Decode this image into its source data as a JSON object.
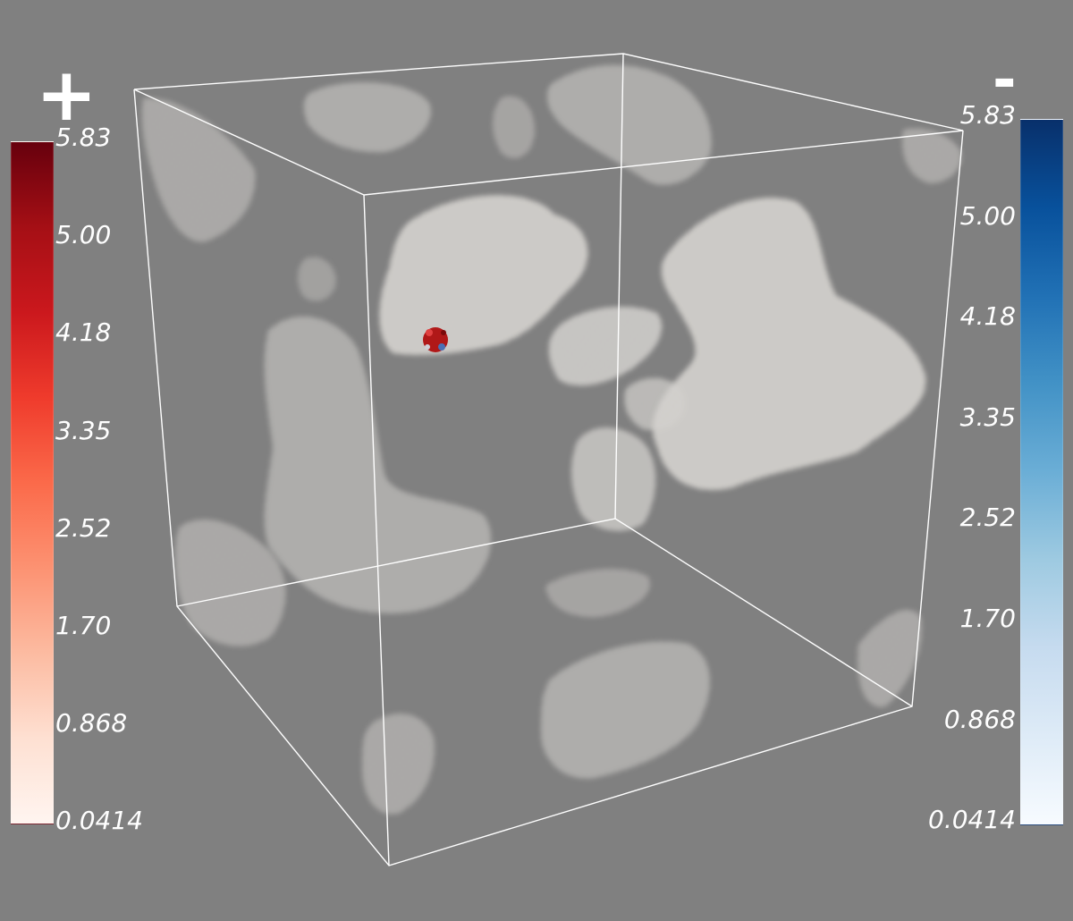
{
  "legend_positive": {
    "sign": "+",
    "color": "#c71a1d",
    "colormap": "Reds",
    "ticks": [
      "5.83",
      "5.00",
      "4.18",
      "3.35",
      "2.52",
      "1.70",
      "0.868",
      "0.0414"
    ]
  },
  "legend_negative": {
    "sign": "-",
    "color": "#1f6db3",
    "colormap": "Blues",
    "ticks": [
      "5.83",
      "5.00",
      "4.18",
      "3.35",
      "2.52",
      "1.70",
      "0.868",
      "0.0414"
    ]
  },
  "scene": {
    "background": "#808080",
    "outline_color": "#ffffff",
    "cloud_color": "#e8e4e0",
    "marker_color": "#b01818"
  }
}
